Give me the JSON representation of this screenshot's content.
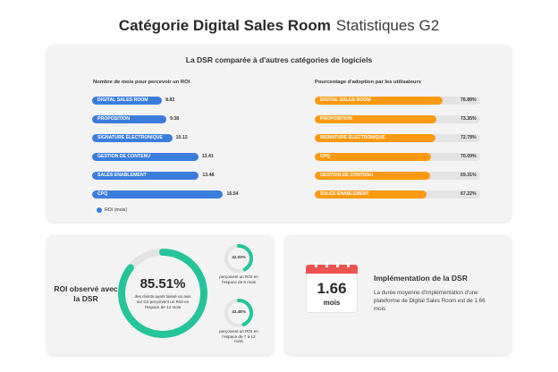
{
  "header": {
    "title": "Catégorie Digital Sales Room",
    "subtitle": "Statistiques G2"
  },
  "colors": {
    "blue": "#3b7ddd",
    "orange": "#fb9a12",
    "green": "#26c49a",
    "gray": "#e3e3e3",
    "red": "#ef5350"
  },
  "chart_data": [
    {
      "type": "bar",
      "orientation": "horizontal",
      "title": "La DSR comparée à d'autres catégories de logiciels",
      "subtitle": "Nombre de mois pour percevoir un ROI",
      "categories": [
        "DIGITAL SALES ROOM",
        "PROPOSITION",
        "SIGNATURE ÉLECTRONIQUE",
        "GESTION DE CONTENU",
        "SALES ENABLEMENT",
        "CPQ"
      ],
      "values": [
        8.82,
        9.38,
        10.12,
        13.41,
        13.48,
        16.54
      ],
      "value_labels": [
        "8.82",
        "9.38",
        "10.12",
        "13.41",
        "13.48",
        "16.54"
      ],
      "legend": [
        "ROI (mois)"
      ],
      "xlim": [
        0,
        17.5
      ]
    },
    {
      "type": "bar",
      "orientation": "horizontal",
      "subtitle": "Pourcentage d'adoption par les utilisateurs",
      "categories": [
        "DIGITAL SALES ROOM",
        "PROPOSITION",
        "SIGNATURE ÉLECTRONIQUE",
        "CPQ",
        "GESTION DE CONTENU",
        "SALES ENABLEMENT"
      ],
      "values": [
        76.89,
        73.35,
        72.78,
        70.09,
        69.31,
        67.22
      ],
      "value_labels": [
        "76.89%",
        "73.35%",
        "72.78%",
        "70.09%",
        "69.31%",
        "67.22%"
      ],
      "xlim": [
        0,
        100
      ]
    },
    {
      "type": "pie",
      "title": "ROI observé avec la DSR",
      "main": {
        "value": 85.51,
        "label": "85.51%",
        "description": "des clients ayant laissé un avis sur G2 perçoivent un ROI en l'espace de 12 mois"
      },
      "small": [
        {
          "value": 42.03,
          "label": "42.03%",
          "description": "perçoivent un ROI en l'espace de 6 mois"
        },
        {
          "value": 43.48,
          "label": "43.48%",
          "description": "perçoivent un ROI en l'espace de 7 à 12 mois"
        }
      ]
    }
  ],
  "implementation": {
    "number": "1.66",
    "unit": "mois",
    "title": "Implémentation de la DSR",
    "description": "La durée moyenne d'implémentation d'une plateforme de Digital Sales Room est de 1.66 mois"
  }
}
